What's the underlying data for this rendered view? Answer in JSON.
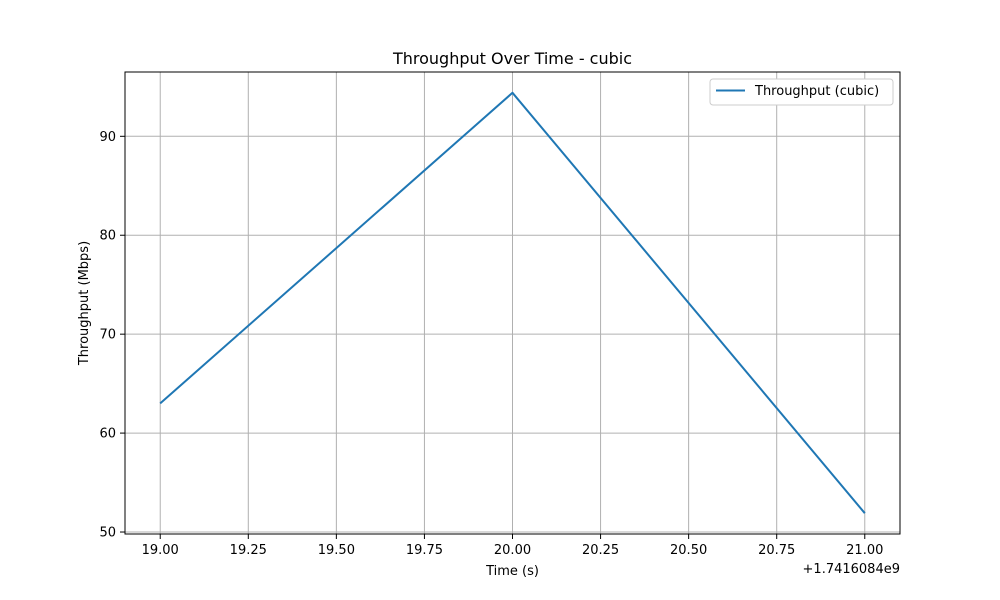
{
  "chart_data": {
    "type": "line",
    "title": "Throughput Over Time - cubic",
    "xlabel": "Time (s)",
    "ylabel": "Throughput (Mbps)",
    "x_offset_label": "+1.7416084e9",
    "xlim": [
      18.9,
      21.1
    ],
    "ylim": [
      49.8,
      96.5
    ],
    "x_ticks": [
      19.0,
      19.25,
      19.5,
      19.75,
      20.0,
      20.25,
      20.5,
      20.75,
      21.0
    ],
    "x_tick_labels": [
      "19.00",
      "19.25",
      "19.50",
      "19.75",
      "20.00",
      "20.25",
      "20.50",
      "20.75",
      "21.00"
    ],
    "y_ticks": [
      50,
      60,
      70,
      80,
      90
    ],
    "y_tick_labels": [
      "50",
      "60",
      "70",
      "80",
      "90"
    ],
    "grid": true,
    "legend_position": "top-right",
    "series": [
      {
        "name": "Throughput (cubic)",
        "color": "#1f77b4",
        "x": [
          19.0,
          20.0,
          21.0
        ],
        "y": [
          63.0,
          94.4,
          51.9
        ]
      }
    ]
  }
}
